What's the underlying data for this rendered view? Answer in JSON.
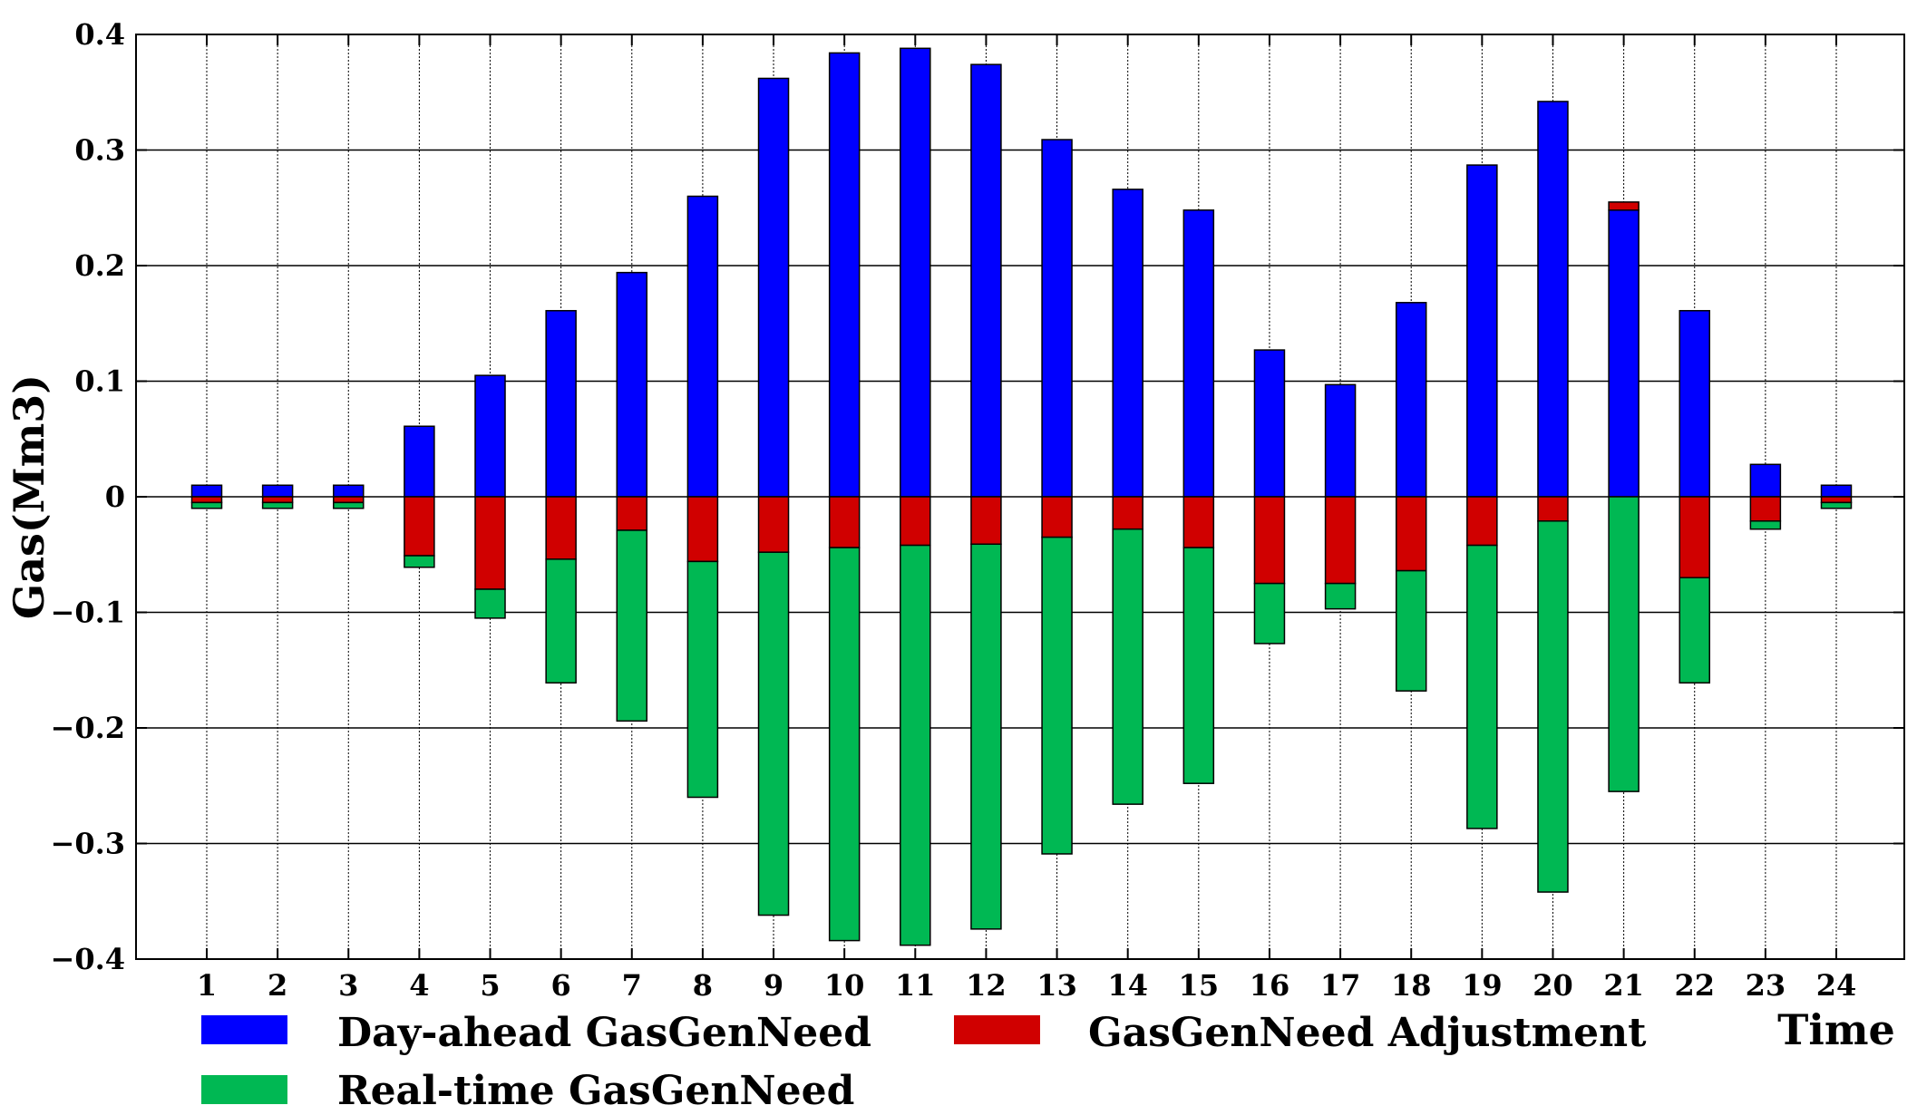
{
  "chart_data": {
    "type": "bar",
    "stacked": true,
    "ylabel": "Gas(Mm3)",
    "xlabel": "Time",
    "ylim": [
      -0.4,
      0.4
    ],
    "yticks": [
      0.4,
      0.3,
      0.2,
      0.1,
      0,
      -0.1,
      -0.2,
      -0.3,
      -0.4
    ],
    "ytick_labels": [
      "0.4",
      "0.3",
      "0.2",
      "0.1",
      "0",
      "−0.1",
      "−0.2",
      "−0.3",
      "−0.4"
    ],
    "grid": "horizontal",
    "categories": [
      "1",
      "2",
      "3",
      "4",
      "5",
      "6",
      "7",
      "8",
      "9",
      "10",
      "11",
      "12",
      "13",
      "14",
      "15",
      "16",
      "17",
      "18",
      "19",
      "20",
      "21",
      "22",
      "23",
      "24"
    ],
    "series": [
      {
        "name": "Day-ahead GasGenNeed",
        "color": "#0000ff",
        "values": [
          0.01,
          0.01,
          0.01,
          0.061,
          0.105,
          0.161,
          0.194,
          0.26,
          0.362,
          0.384,
          0.388,
          0.374,
          0.309,
          0.266,
          0.248,
          0.127,
          0.097,
          0.168,
          0.287,
          0.342,
          0.248,
          0.161,
          0.028,
          0.01
        ]
      },
      {
        "name": "GasGenNeed Adjustment",
        "color": "#d00000",
        "values": [
          -0.005,
          -0.005,
          -0.005,
          -0.051,
          -0.08,
          -0.054,
          -0.029,
          -0.056,
          -0.048,
          -0.044,
          -0.042,
          -0.041,
          -0.035,
          -0.028,
          -0.044,
          -0.075,
          -0.075,
          -0.064,
          -0.042,
          -0.021,
          0.007,
          -0.07,
          -0.021,
          -0.005
        ]
      },
      {
        "name": "Real-time GasGenNeed",
        "color": "#00b853",
        "values": [
          -0.005,
          -0.005,
          -0.005,
          -0.01,
          -0.025,
          -0.107,
          -0.165,
          -0.204,
          -0.314,
          -0.34,
          -0.346,
          -0.333,
          -0.274,
          -0.238,
          -0.204,
          -0.052,
          -0.022,
          -0.104,
          -0.245,
          -0.321,
          -0.255,
          -0.091,
          -0.007,
          -0.005
        ]
      }
    ],
    "legend": {
      "placement": "bottom",
      "items": [
        {
          "label": "Day-ahead GasGenNeed",
          "color": "#0000ff"
        },
        {
          "label": "GasGenNeed Adjustment",
          "color": "#d00000"
        },
        {
          "label": "Real-time GasGenNeed",
          "color": "#00b853"
        }
      ]
    }
  }
}
